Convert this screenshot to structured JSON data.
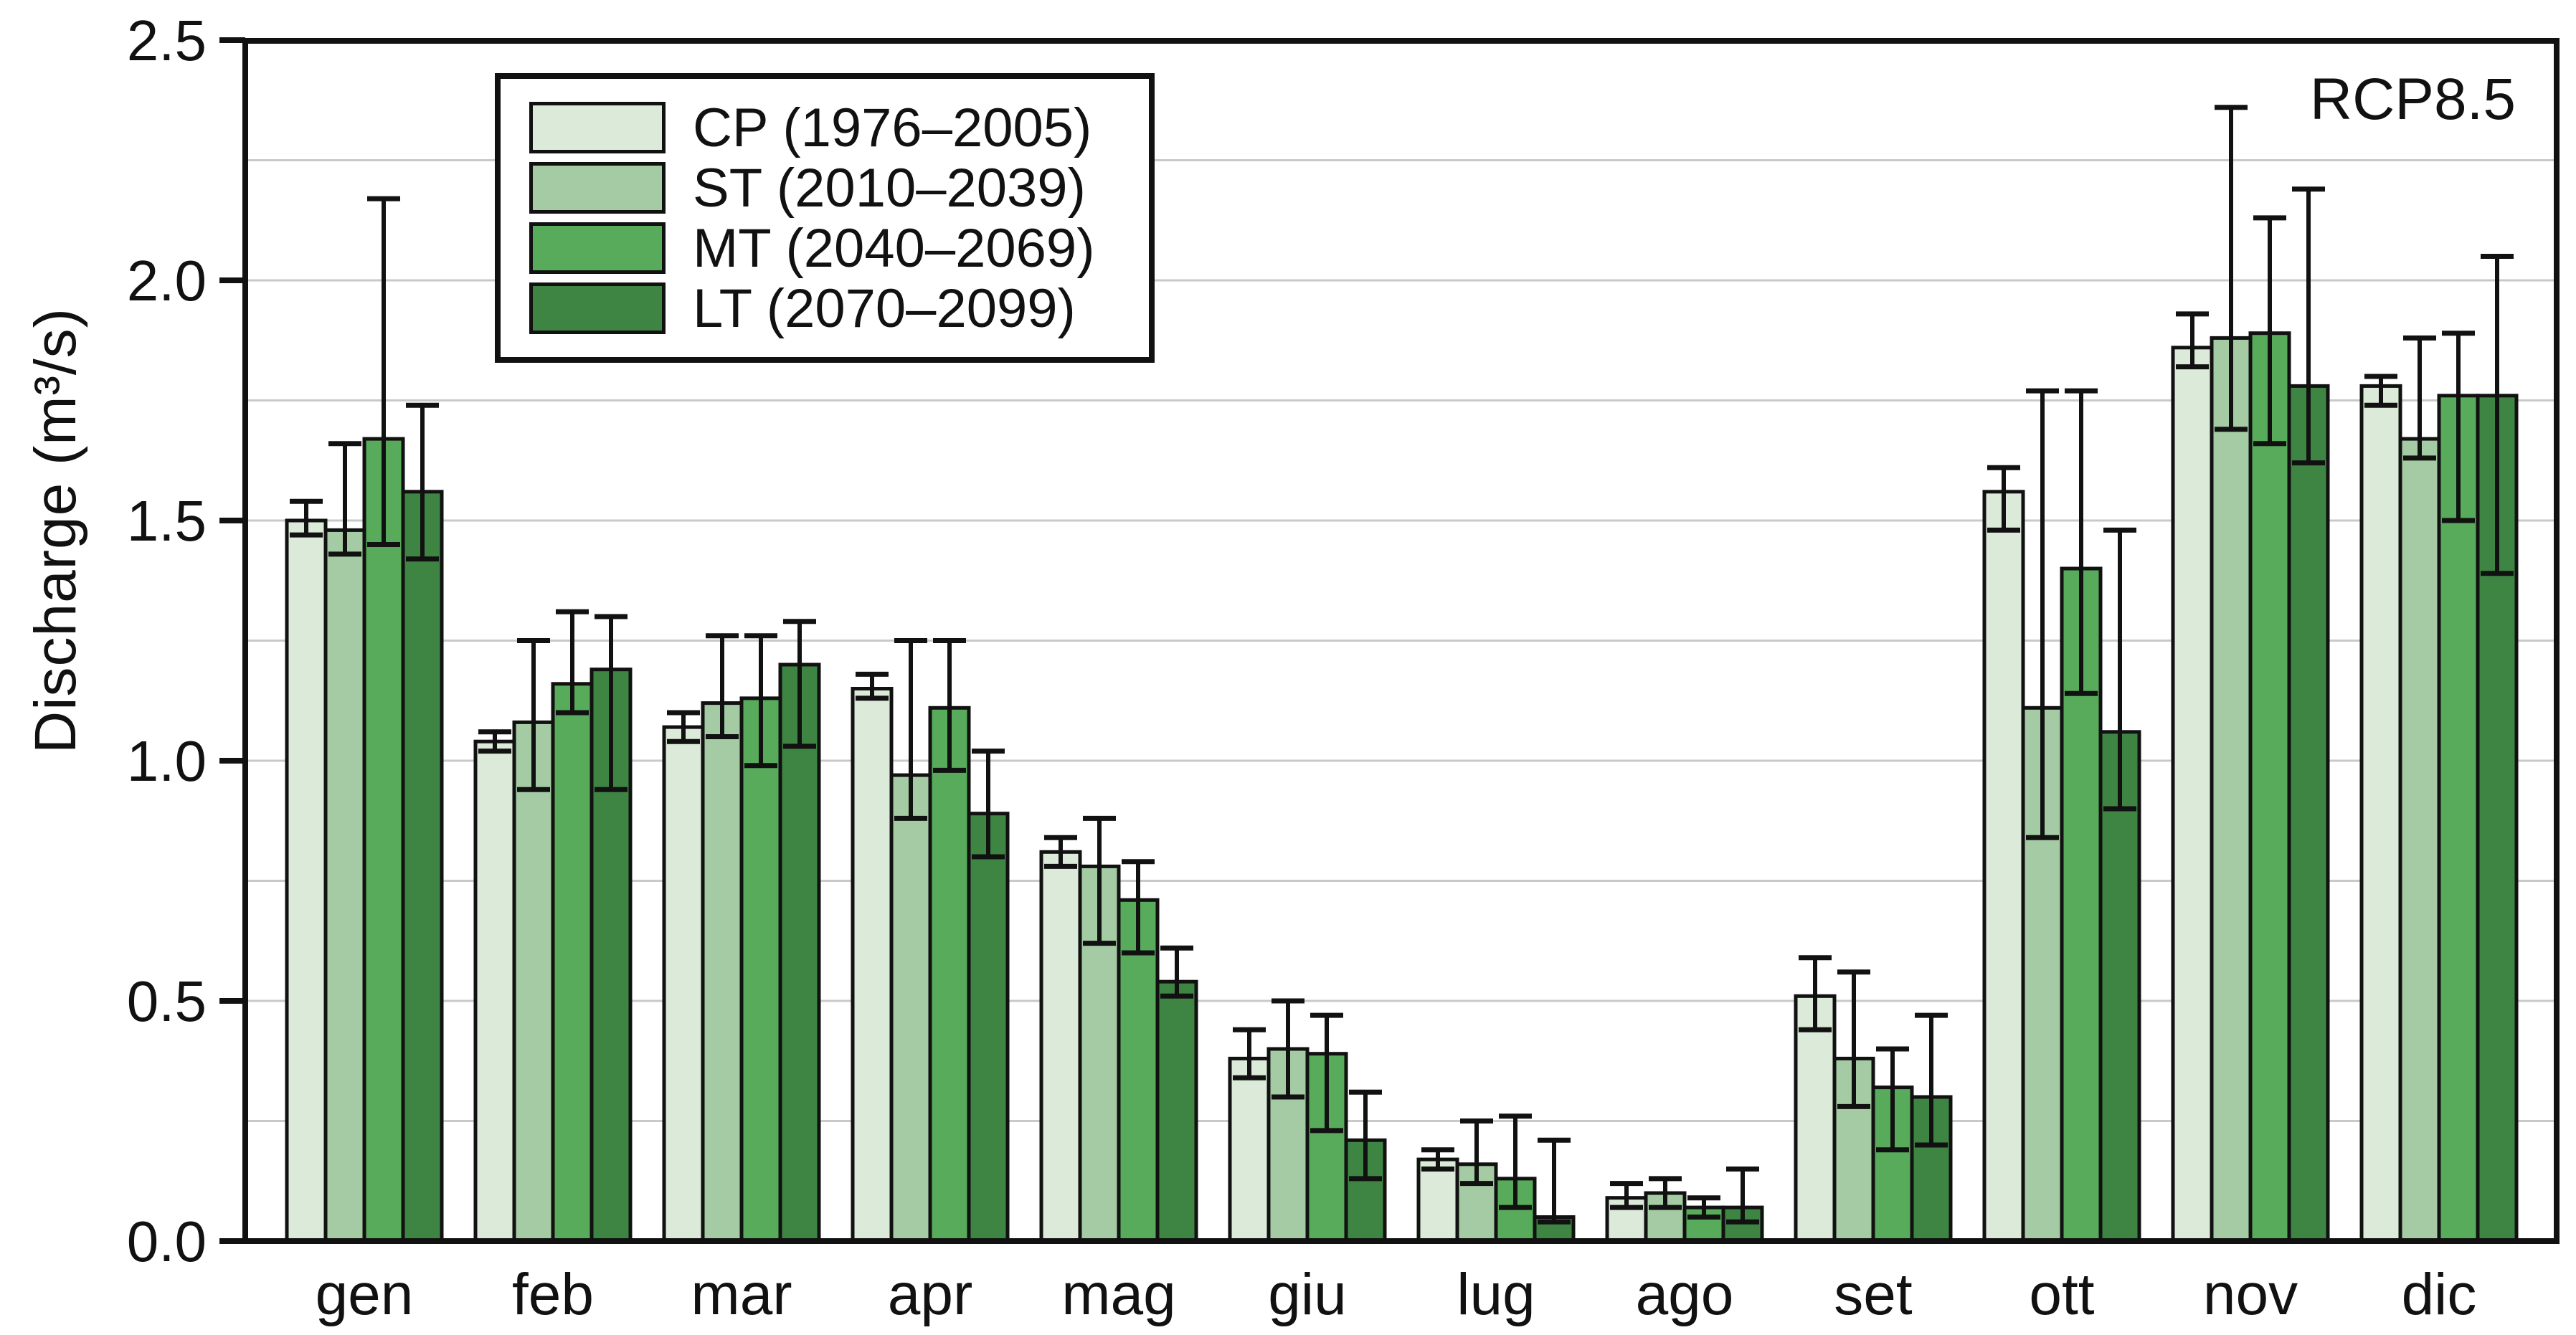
{
  "page": {
    "background": "#ffffff",
    "text_color": "#111111",
    "grid_color": "#c9c9c9",
    "edge_color": "#111111"
  },
  "chart_data": {
    "type": "bar",
    "title": "",
    "annotation": "RCP8.5",
    "ylabel": "Discharge (m³/s)",
    "xlabel": "",
    "ylim": [
      0,
      2.5
    ],
    "grid": true,
    "grid_step": 0.25,
    "legend_position": "top-left",
    "y_ticks": [
      "0.0",
      "0.5",
      "1.0",
      "1.5",
      "2.0",
      "2.5"
    ],
    "categories": [
      "gen",
      "feb",
      "mar",
      "apr",
      "mag",
      "giu",
      "lug",
      "ago",
      "set",
      "ott",
      "nov",
      "dic"
    ],
    "series": [
      {
        "key": "cp",
        "name": "CP (1976–2005)",
        "color": "#dcead9",
        "values": [
          1.5,
          1.04,
          1.07,
          1.15,
          0.81,
          0.38,
          0.17,
          0.09,
          0.51,
          1.56,
          1.86,
          1.78
        ],
        "err_min": [
          1.47,
          1.02,
          1.04,
          1.13,
          0.78,
          0.34,
          0.15,
          0.07,
          0.44,
          1.48,
          1.82,
          1.74
        ],
        "err_max": [
          1.54,
          1.06,
          1.1,
          1.18,
          0.84,
          0.44,
          0.19,
          0.12,
          0.59,
          1.61,
          1.93,
          1.8
        ]
      },
      {
        "key": "st",
        "name": "ST (2010–2039)",
        "color": "#a4cba4",
        "values": [
          1.48,
          1.08,
          1.12,
          0.97,
          0.78,
          0.4,
          0.16,
          0.1,
          0.38,
          1.11,
          1.88,
          1.67
        ],
        "err_min": [
          1.43,
          0.94,
          1.05,
          0.88,
          0.62,
          0.3,
          0.12,
          0.07,
          0.28,
          0.84,
          1.69,
          1.63
        ],
        "err_max": [
          1.66,
          1.25,
          1.26,
          1.25,
          0.88,
          0.5,
          0.25,
          0.13,
          0.56,
          1.77,
          2.36,
          1.88
        ]
      },
      {
        "key": "mt",
        "name": "MT (2040–2069)",
        "color": "#57ab5b",
        "values": [
          1.67,
          1.16,
          1.13,
          1.11,
          0.71,
          0.39,
          0.13,
          0.07,
          0.32,
          1.4,
          1.89,
          1.76
        ],
        "err_min": [
          1.45,
          1.1,
          0.99,
          0.98,
          0.6,
          0.23,
          0.07,
          0.05,
          0.19,
          1.14,
          1.66,
          1.5
        ],
        "err_max": [
          2.17,
          1.31,
          1.26,
          1.25,
          0.79,
          0.47,
          0.26,
          0.09,
          0.4,
          1.77,
          2.13,
          1.89
        ]
      },
      {
        "key": "lt",
        "name": "LT (2070–2099)",
        "color": "#3e8544",
        "values": [
          1.56,
          1.19,
          1.2,
          0.89,
          0.54,
          0.21,
          0.05,
          0.07,
          0.3,
          1.06,
          1.78,
          1.76
        ],
        "err_min": [
          1.42,
          0.94,
          1.03,
          0.8,
          0.51,
          0.13,
          0.04,
          0.04,
          0.2,
          0.9,
          1.62,
          1.39
        ],
        "err_max": [
          1.74,
          1.3,
          1.29,
          1.02,
          0.61,
          0.31,
          0.21,
          0.15,
          0.47,
          1.48,
          2.19,
          2.05
        ]
      }
    ]
  }
}
